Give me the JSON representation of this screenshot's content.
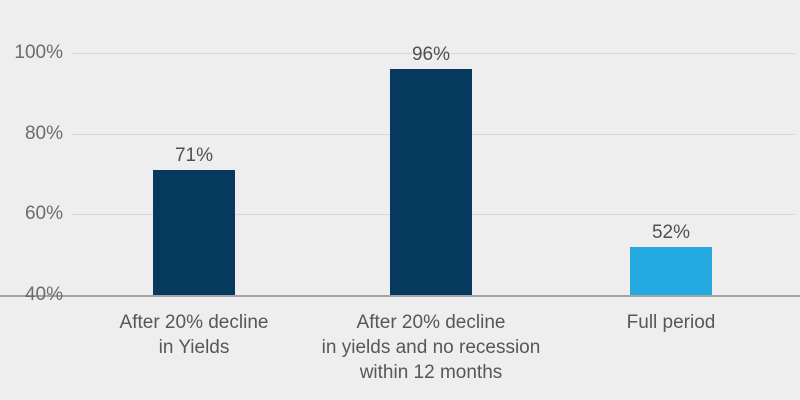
{
  "chart_data": {
    "type": "bar",
    "title": "",
    "xlabel": "",
    "ylabel": "",
    "categories": [
      "After 20% decline\nin Yields",
      "After 20% decline\nin yields and no recession\nwithin 12 months",
      "Full period"
    ],
    "values": [
      71,
      96,
      52
    ],
    "value_labels": [
      "71%",
      "96%",
      "52%"
    ],
    "bar_colors": [
      "#053A5E",
      "#053A5E",
      "#24AAE1"
    ],
    "yticks": [
      100,
      80,
      60,
      40
    ],
    "ytick_labels": [
      "100%",
      "80%",
      "60%",
      "40%"
    ],
    "ylim": [
      40,
      100
    ],
    "grid": true,
    "legend_position": "none",
    "colors": {
      "background": "#EEEEEE",
      "gridline": "#D7D8D9",
      "baseline": "#A2A4A7",
      "tick_label": "#6B6C6E",
      "value_label": "#4E5052",
      "category_label": "#56575A"
    }
  }
}
